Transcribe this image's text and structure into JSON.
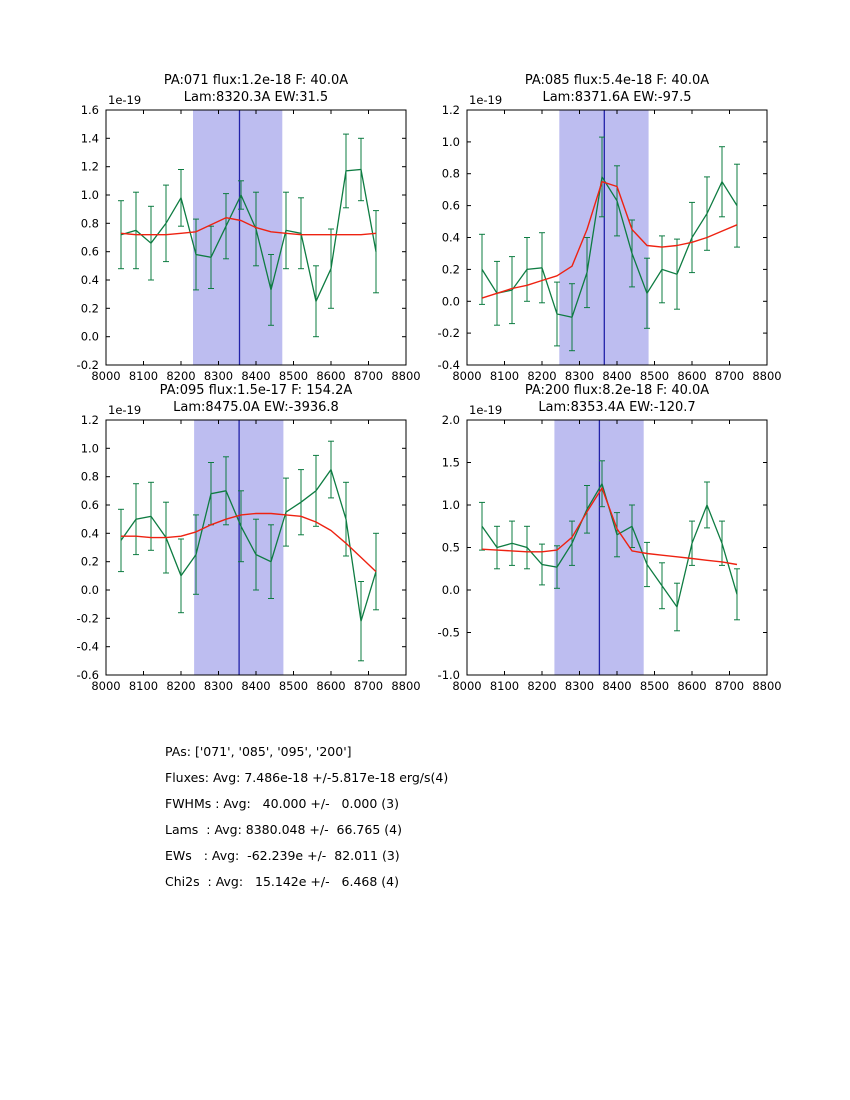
{
  "colors": {
    "band": "#bdbdf0",
    "vline": "#2323a8",
    "data": "#0e7c42",
    "fit": "#ee2211",
    "axis": "#000000"
  },
  "chart_data": [
    {
      "type": "line",
      "title_line1": "PA:071 flux:1.2e-18 F: 40.0A",
      "title_line2": "Lam:8320.3A EW:31.5",
      "offset_label": "1e-19",
      "xlim": [
        8000,
        8800
      ],
      "ylim": [
        -0.2,
        1.6
      ],
      "xticks": [
        8000,
        8100,
        8200,
        8300,
        8400,
        8500,
        8600,
        8700,
        8800
      ],
      "yticks": [
        -0.2,
        0.0,
        0.2,
        0.4,
        0.6,
        0.8,
        1.0,
        1.2,
        1.4,
        1.6
      ],
      "band": [
        8232,
        8470
      ],
      "vline": 8356,
      "x": [
        8040,
        8080,
        8120,
        8160,
        8200,
        8240,
        8280,
        8320,
        8360,
        8400,
        8440,
        8480,
        8520,
        8560,
        8600,
        8640,
        8680,
        8720
      ],
      "y": [
        0.72,
        0.75,
        0.66,
        0.8,
        0.98,
        0.58,
        0.56,
        0.78,
        1.0,
        0.76,
        0.33,
        0.75,
        0.73,
        0.25,
        0.48,
        1.17,
        1.18,
        0.6
      ],
      "yerr": [
        0.24,
        0.27,
        0.26,
        0.27,
        0.2,
        0.25,
        0.22,
        0.23,
        0.1,
        0.26,
        0.25,
        0.27,
        0.25,
        0.25,
        0.28,
        0.26,
        0.22,
        0.29
      ],
      "fit_y": [
        0.73,
        0.72,
        0.72,
        0.72,
        0.73,
        0.74,
        0.79,
        0.84,
        0.82,
        0.77,
        0.74,
        0.73,
        0.72,
        0.72,
        0.72,
        0.72,
        0.72,
        0.73
      ]
    },
    {
      "type": "line",
      "title_line1": "PA:085 flux:5.4e-18 F: 40.0A",
      "title_line2": "Lam:8371.6A EW:-97.5",
      "offset_label": "1e-19",
      "xlim": [
        8000,
        8800
      ],
      "ylim": [
        -0.4,
        1.2
      ],
      "xticks": [
        8000,
        8100,
        8200,
        8300,
        8400,
        8500,
        8600,
        8700,
        8800
      ],
      "yticks": [
        -0.4,
        -0.2,
        0.0,
        0.2,
        0.4,
        0.6,
        0.8,
        1.0,
        1.2
      ],
      "band": [
        8246,
        8484
      ],
      "vline": 8366,
      "x": [
        8040,
        8080,
        8120,
        8160,
        8200,
        8240,
        8280,
        8320,
        8360,
        8400,
        8440,
        8480,
        8520,
        8560,
        8600,
        8640,
        8680,
        8720
      ],
      "y": [
        0.2,
        0.05,
        0.07,
        0.2,
        0.21,
        -0.08,
        -0.1,
        0.18,
        0.78,
        0.63,
        0.3,
        0.05,
        0.2,
        0.17,
        0.4,
        0.55,
        0.75,
        0.6
      ],
      "yerr": [
        0.22,
        0.2,
        0.21,
        0.2,
        0.22,
        0.2,
        0.21,
        0.22,
        0.25,
        0.22,
        0.21,
        0.22,
        0.21,
        0.22,
        0.22,
        0.23,
        0.22,
        0.26
      ],
      "fit_y": [
        0.02,
        0.05,
        0.08,
        0.1,
        0.13,
        0.16,
        0.22,
        0.45,
        0.75,
        0.72,
        0.45,
        0.35,
        0.34,
        0.35,
        0.37,
        0.4,
        0.44,
        0.48
      ]
    },
    {
      "type": "line",
      "title_line1": "PA:095 flux:1.5e-17 F: 154.2A",
      "title_line2": "Lam:8475.0A EW:-3936.8",
      "offset_label": "1e-19",
      "xlim": [
        8000,
        8800
      ],
      "ylim": [
        -0.6,
        1.2
      ],
      "xticks": [
        8000,
        8100,
        8200,
        8300,
        8400,
        8500,
        8600,
        8700,
        8800
      ],
      "yticks": [
        -0.6,
        -0.4,
        -0.2,
        0.0,
        0.2,
        0.4,
        0.6,
        0.8,
        1.0,
        1.2
      ],
      "band": [
        8235,
        8473
      ],
      "vline": 8355,
      "x": [
        8040,
        8080,
        8120,
        8160,
        8200,
        8240,
        8280,
        8320,
        8360,
        8400,
        8440,
        8480,
        8520,
        8560,
        8600,
        8640,
        8680,
        8720
      ],
      "y": [
        0.35,
        0.5,
        0.52,
        0.37,
        0.1,
        0.25,
        0.68,
        0.7,
        0.45,
        0.25,
        0.2,
        0.55,
        0.62,
        0.7,
        0.85,
        0.5,
        -0.22,
        0.13
      ],
      "yerr": [
        0.22,
        0.25,
        0.24,
        0.25,
        0.26,
        0.28,
        0.22,
        0.24,
        0.25,
        0.25,
        0.26,
        0.24,
        0.23,
        0.25,
        0.2,
        0.26,
        0.28,
        0.27
      ],
      "fit_y": [
        0.38,
        0.38,
        0.37,
        0.37,
        0.38,
        0.41,
        0.46,
        0.5,
        0.53,
        0.54,
        0.54,
        0.53,
        0.52,
        0.48,
        0.42,
        0.33,
        0.23,
        0.13
      ]
    },
    {
      "type": "line",
      "title_line1": "PA:200 flux:8.2e-18 F: 40.0A",
      "title_line2": "Lam:8353.4A EW:-120.7",
      "offset_label": "1e-19",
      "xlim": [
        8000,
        8800
      ],
      "ylim": [
        -1.0,
        2.0
      ],
      "xticks": [
        8000,
        8100,
        8200,
        8300,
        8400,
        8500,
        8600,
        8700,
        8800
      ],
      "yticks": [
        -1.0,
        -0.5,
        0.0,
        0.5,
        1.0,
        1.5,
        2.0
      ],
      "band": [
        8233,
        8471
      ],
      "vline": 8353,
      "x": [
        8040,
        8080,
        8120,
        8160,
        8200,
        8240,
        8280,
        8320,
        8360,
        8400,
        8440,
        8480,
        8520,
        8560,
        8600,
        8640,
        8680,
        8720
      ],
      "y": [
        0.75,
        0.5,
        0.55,
        0.5,
        0.3,
        0.27,
        0.55,
        0.95,
        1.25,
        0.65,
        0.75,
        0.3,
        0.05,
        -0.2,
        0.55,
        1.0,
        0.55,
        -0.05
      ],
      "yerr": [
        0.28,
        0.25,
        0.26,
        0.25,
        0.24,
        0.25,
        0.26,
        0.28,
        0.27,
        0.26,
        0.25,
        0.26,
        0.27,
        0.28,
        0.26,
        0.27,
        0.26,
        0.3
      ],
      "fit_y": [
        0.48,
        0.47,
        0.46,
        0.45,
        0.45,
        0.47,
        0.62,
        0.92,
        1.2,
        0.72,
        0.46,
        0.43,
        0.41,
        0.39,
        0.37,
        0.35,
        0.33,
        0.3
      ]
    }
  ],
  "summary": {
    "lines": [
      "PAs: ['071', '085', '095', '200']",
      "Fluxes: Avg: 7.486e-18 +/-5.817e-18 erg/s(4)",
      "FWHMs : Avg:   40.000 +/-   0.000 (3)",
      "Lams  : Avg: 8380.048 +/-  66.765 (4)",
      "EWs   : Avg:  -62.239e +/-  82.011 (3)",
      "Chi2s  : Avg:   15.142e +/-   6.468 (4)"
    ]
  }
}
